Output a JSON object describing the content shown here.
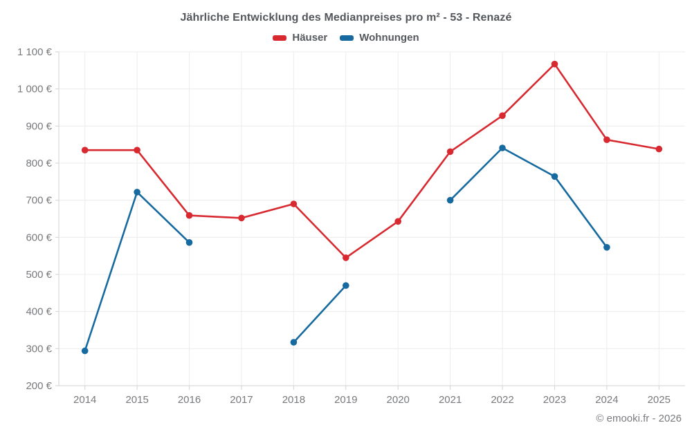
{
  "chart_data": {
    "type": "line",
    "title": "Jährliche Entwicklung des Medianpreises pro m² - 53 - Renazé",
    "categories": [
      "2014",
      "2015",
      "2016",
      "2017",
      "2018",
      "2019",
      "2020",
      "2021",
      "2022",
      "2023",
      "2024",
      "2025"
    ],
    "series": [
      {
        "name": "Häuser",
        "color": "#d7292f",
        "values": [
          835,
          835,
          659,
          652,
          690,
          545,
          643,
          831,
          928,
          1067,
          863,
          838
        ]
      },
      {
        "name": "Wohnungen",
        "color": "#166a9f",
        "values": [
          294,
          722,
          586,
          null,
          317,
          470,
          null,
          700,
          841,
          764,
          573,
          null
        ]
      }
    ],
    "y_tick_labels": [
      "1 100 €",
      "1 000 €",
      "900 €",
      "800 €",
      "700 €",
      "600 €",
      "500 €",
      "400 €",
      "300 €",
      "200 €"
    ],
    "ylim": [
      200,
      1100
    ],
    "ytick_step": 100,
    "xlabel": "",
    "ylabel": "",
    "grid": true,
    "legend_position": "top",
    "marker": "circle",
    "colors": {
      "grid": "#ececec",
      "axis": "#d2d2d2",
      "tick_text": "#77797c"
    }
  },
  "footer": {
    "credit": "© emooki.fr - 2026"
  }
}
